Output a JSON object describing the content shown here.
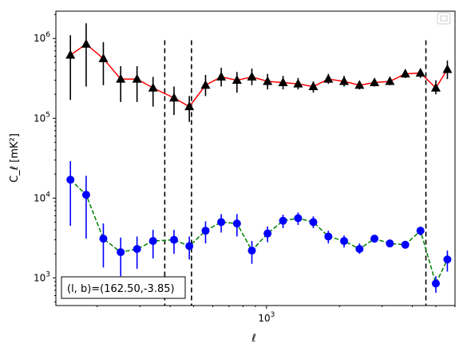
{
  "chart_data": {
    "type": "scatter",
    "title": "",
    "xlabel": "ℓ",
    "ylabel": "C_ℓ  [mK²]",
    "xscale": "log",
    "yscale": "log",
    "xlim": [
      135,
      6000
    ],
    "ylim": [
      450,
      2200000
    ],
    "grid": false,
    "legend": "top-right (empty)",
    "x_tick_labels": [
      {
        "value": 1000,
        "label": "10^3"
      }
    ],
    "y_tick_labels": [
      {
        "value": 1000,
        "label": "10^3"
      },
      {
        "value": 10000,
        "label": "10^4"
      },
      {
        "value": 100000,
        "label": "10^5"
      },
      {
        "value": 1000000,
        "label": "10^6"
      }
    ],
    "annotation": "(l, b)=(162.50,-3.85)",
    "vlines": [
      380,
      490,
      4550
    ],
    "series": [
      {
        "marker": "triangle",
        "marker_color": "#000000",
        "line_color": "#ff0000",
        "line_style": "solid",
        "errorbar_color": "#000000",
        "points": [
          {
            "x": 155,
            "y": 620000,
            "lo": 170000,
            "hi": 1100000
          },
          {
            "x": 180,
            "y": 850000,
            "lo": 250000,
            "hi": 1550000
          },
          {
            "x": 212,
            "y": 560000,
            "lo": 260000,
            "hi": 900000
          },
          {
            "x": 250,
            "y": 310000,
            "lo": 160000,
            "hi": 450000
          },
          {
            "x": 292,
            "y": 310000,
            "lo": 160000,
            "hi": 450000
          },
          {
            "x": 340,
            "y": 240000,
            "lo": 140000,
            "hi": 330000
          },
          {
            "x": 415,
            "y": 180000,
            "lo": 110000,
            "hi": 250000
          },
          {
            "x": 480,
            "y": 140000,
            "lo": 90000,
            "hi": 190000
          },
          {
            "x": 560,
            "y": 260000,
            "lo": 190000,
            "hi": 350000
          },
          {
            "x": 650,
            "y": 330000,
            "lo": 250000,
            "hi": 430000
          },
          {
            "x": 755,
            "y": 300000,
            "lo": 210000,
            "hi": 380000
          },
          {
            "x": 870,
            "y": 330000,
            "lo": 260000,
            "hi": 420000
          },
          {
            "x": 1010,
            "y": 290000,
            "lo": 230000,
            "hi": 360000
          },
          {
            "x": 1170,
            "y": 280000,
            "lo": 230000,
            "hi": 340000
          },
          {
            "x": 1350,
            "y": 270000,
            "lo": 230000,
            "hi": 320000
          },
          {
            "x": 1560,
            "y": 250000,
            "lo": 210000,
            "hi": 290000
          },
          {
            "x": 1800,
            "y": 310000,
            "lo": 270000,
            "hi": 360000
          },
          {
            "x": 2090,
            "y": 290000,
            "lo": 250000,
            "hi": 340000
          },
          {
            "x": 2420,
            "y": 260000,
            "lo": 230000,
            "hi": 290000
          },
          {
            "x": 2790,
            "y": 280000,
            "lo": 250000,
            "hi": 310000
          },
          {
            "x": 3230,
            "y": 290000,
            "lo": 260000,
            "hi": 330000
          },
          {
            "x": 3740,
            "y": 360000,
            "lo": 320000,
            "hi": 410000
          },
          {
            "x": 4320,
            "y": 370000,
            "lo": 320000,
            "hi": 420000
          },
          {
            "x": 5000,
            "y": 240000,
            "lo": 200000,
            "hi": 300000
          },
          {
            "x": 5580,
            "y": 410000,
            "lo": 310000,
            "hi": 530000
          }
        ]
      },
      {
        "marker": "circle",
        "marker_color": "#0000ff",
        "line_color": "#008000",
        "line_style": "dashed",
        "errorbar_color": "#0000ff",
        "points": [
          {
            "x": 155,
            "y": 17000,
            "lo": 4500,
            "hi": 29000
          },
          {
            "x": 180,
            "y": 11000,
            "lo": 3100,
            "hi": 19000
          },
          {
            "x": 212,
            "y": 3100,
            "lo": 1350,
            "hi": 4800
          },
          {
            "x": 250,
            "y": 2100,
            "lo": 1050,
            "hi": 3200
          },
          {
            "x": 292,
            "y": 2300,
            "lo": 1300,
            "hi": 3300
          },
          {
            "x": 340,
            "y": 2900,
            "lo": 1750,
            "hi": 4000
          },
          {
            "x": 415,
            "y": 3000,
            "lo": 2000,
            "hi": 4000
          },
          {
            "x": 480,
            "y": 2500,
            "lo": 1700,
            "hi": 3300
          },
          {
            "x": 560,
            "y": 3900,
            "lo": 2700,
            "hi": 5100
          },
          {
            "x": 650,
            "y": 5000,
            "lo": 3700,
            "hi": 6300
          },
          {
            "x": 755,
            "y": 4800,
            "lo": 3300,
            "hi": 6300
          },
          {
            "x": 870,
            "y": 2200,
            "lo": 1500,
            "hi": 2900
          },
          {
            "x": 1010,
            "y": 3600,
            "lo": 2800,
            "hi": 4400
          },
          {
            "x": 1170,
            "y": 5200,
            "lo": 4200,
            "hi": 6200
          },
          {
            "x": 1350,
            "y": 5600,
            "lo": 4600,
            "hi": 6600
          },
          {
            "x": 1560,
            "y": 5000,
            "lo": 4200,
            "hi": 5900
          },
          {
            "x": 1800,
            "y": 3300,
            "lo": 2700,
            "hi": 3900
          },
          {
            "x": 2090,
            "y": 2900,
            "lo": 2400,
            "hi": 3400
          },
          {
            "x": 2420,
            "y": 2300,
            "lo": 2000,
            "hi": 2700
          },
          {
            "x": 2790,
            "y": 3100,
            "lo": 2800,
            "hi": 3400
          },
          {
            "x": 3230,
            "y": 2700,
            "lo": 2500,
            "hi": 2900
          },
          {
            "x": 3740,
            "y": 2600,
            "lo": 2400,
            "hi": 2800
          },
          {
            "x": 4320,
            "y": 3900,
            "lo": 3400,
            "hi": 4400
          },
          {
            "x": 5000,
            "y": 850,
            "lo": 650,
            "hi": 1050
          },
          {
            "x": 5580,
            "y": 1700,
            "lo": 1200,
            "hi": 2200
          }
        ]
      }
    ]
  }
}
